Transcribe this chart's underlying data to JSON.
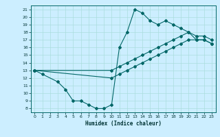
{
  "title": "",
  "xlabel": "Humidex (Indice chaleur)",
  "bg_color": "#cceeff",
  "line_color": "#006666",
  "grid_color": "#aadddd",
  "xlim": [
    -0.5,
    23.5
  ],
  "ylim": [
    7.5,
    21.5
  ],
  "xticks": [
    0,
    1,
    2,
    3,
    4,
    5,
    6,
    7,
    8,
    9,
    10,
    11,
    12,
    13,
    14,
    15,
    16,
    17,
    18,
    19,
    20,
    21,
    22,
    23
  ],
  "yticks": [
    8,
    9,
    10,
    11,
    12,
    13,
    14,
    15,
    16,
    17,
    18,
    19,
    20,
    21
  ],
  "curve1_x": [
    0,
    1,
    3,
    4,
    5,
    6,
    7,
    8,
    9,
    10,
    11,
    12,
    13,
    14,
    15,
    16,
    17,
    18,
    19,
    20,
    21,
    22,
    23
  ],
  "curve1_y": [
    13,
    12.5,
    11.5,
    10.5,
    9,
    9,
    8.5,
    8,
    8,
    8.5,
    16,
    18,
    21,
    20.5,
    19.5,
    19,
    19.5,
    19,
    18.5,
    18,
    17.5,
    17.5,
    17
  ],
  "curve2_x": [
    0,
    10,
    11,
    12,
    13,
    14,
    15,
    16,
    17,
    18,
    19,
    20,
    21,
    22,
    23
  ],
  "curve2_y": [
    13,
    13,
    13.5,
    14,
    14.5,
    15,
    15.5,
    16,
    16.5,
    17,
    17.5,
    18,
    17,
    17,
    16.5
  ],
  "curve3_x": [
    0,
    10,
    11,
    12,
    13,
    14,
    15,
    16,
    17,
    18,
    19,
    20,
    21,
    22,
    23
  ],
  "curve3_y": [
    13,
    12,
    12.5,
    13,
    13.5,
    14,
    14.5,
    15,
    15.5,
    16,
    16.5,
    17,
    17,
    17,
    16.5
  ]
}
